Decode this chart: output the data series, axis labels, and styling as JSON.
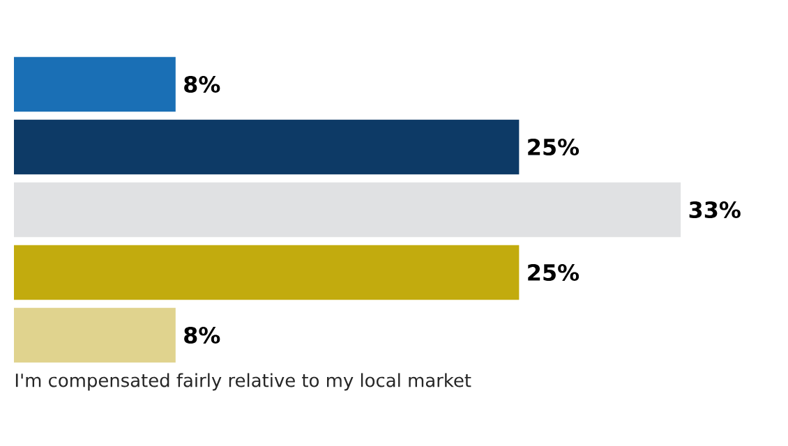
{
  "chart_data": {
    "type": "bar",
    "orientation": "horizontal",
    "categories": [
      null,
      null,
      null,
      null,
      null
    ],
    "values": [
      8,
      25,
      33,
      25,
      8
    ],
    "colors": [
      "#1a6fb5",
      "#0d3a66",
      "#e0e1e3",
      "#c2ab0e",
      "#e0d38e"
    ],
    "value_labels": [
      "8%",
      "25%",
      "33%",
      "25%",
      "8%"
    ],
    "xlabel": "I'm compensated fairly relative to my local market"
  }
}
